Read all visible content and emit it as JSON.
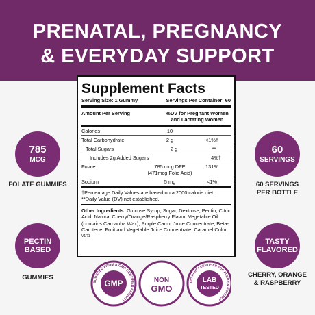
{
  "header": {
    "title_line1": "PRENATAL, PREGNANCY",
    "title_line2": "& EVERYDAY SUPPORT"
  },
  "features": [
    {
      "circle_line1": "785",
      "circle_line2": "MCG",
      "caption_line1": "FOLATE GUMMIES"
    },
    {
      "circle_line1": "PECTIN",
      "circle_line2": "BASED",
      "caption_line1": "GUMMIES"
    },
    {
      "circle_line1": "60",
      "circle_line2": "SERVINGS",
      "caption_line1": "60 SERVINGS",
      "caption_line2": "PER BOTTLE"
    },
    {
      "circle_line1": "TASTY",
      "circle_line2": "FLAVORED",
      "caption_line1": "CHERRY, ORANGE",
      "caption_line2": "& RASPBERRY"
    }
  ],
  "panel": {
    "title": "Supplement Facts",
    "serving_size": "Serving Size: 1 Gummy",
    "servings_per_container": "Servings Per Container: 60",
    "column_amount": "Amount Per Serving",
    "column_dv": "%DV for Pregnant Women and Lactating Women",
    "rows": [
      {
        "name": "Calories",
        "amount": "10"
      },
      {
        "name": "Total Carbohydrate",
        "amount": "2 g",
        "dv": "<1%†"
      },
      {
        "name": "Total Sugars",
        "amount": "2 g",
        "dv": "**",
        "indent": 1
      },
      {
        "name": "Includes 2g Added Sugars",
        "dv": "4%†",
        "indent": 2
      },
      {
        "name": "Folate",
        "amount": "785 mcg DFE (471mcg Folic Acid)",
        "dv": "131%"
      },
      {
        "name": "Sodium",
        "amount": "5 mg",
        "dv": "<1%"
      }
    ],
    "footnote1": "†Percentage Daily Values are based on a 2000 calorie diet.",
    "footnote2": "**Daily Value (DV) not established.",
    "ingredients_label": "Other Ingredients:",
    "ingredients": "Glucose Syrup, Sugar, Dextrose, Pectin, Citric Acid, Natural Cherry/Orange/Raspberry Flavor, Vegetable Oil (contains Carnauba Wax), Purple Carrot Juice Concentrate, Beta-Carotene, Fruit and Vegetable Juice Concentrate, Caramel Color.",
    "version": "V1R1"
  },
  "badges": [
    {
      "main": "GMP",
      "rim": "SOURCED FROM A GMP CERTIFIED FACILITY"
    },
    {
      "main_line1": "NON",
      "main_line2": "GMO"
    },
    {
      "main_line1": "LAB",
      "main_line2": "TESTED",
      "rim": "3RD PARTY CERTIFIED FOR PURITY & POTENCY"
    }
  ]
}
